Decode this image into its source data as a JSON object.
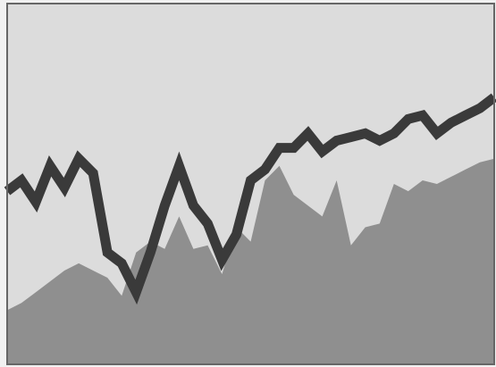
{
  "chart_data": {
    "type": "line",
    "title": "",
    "xlabel": "",
    "ylabel": "",
    "xlim": [
      0,
      34
    ],
    "ylim": [
      0,
      100
    ],
    "grid": false,
    "legend": "none",
    "x": [
      0,
      1,
      2,
      3,
      4,
      5,
      6,
      7,
      8,
      9,
      10,
      11,
      12,
      13,
      14,
      15,
      16,
      17,
      18,
      19,
      20,
      21,
      22,
      23,
      24,
      25,
      26,
      27,
      28,
      29,
      30,
      31,
      32,
      33,
      34
    ],
    "series": [
      {
        "kind": "area",
        "color": "#8f8f8f",
        "values": [
          15,
          17,
          20,
          23,
          26,
          28,
          26,
          24,
          19,
          31,
          34,
          32,
          41,
          32,
          33,
          25,
          38,
          34,
          51,
          55,
          47,
          44,
          41,
          51,
          33,
          38,
          39,
          50,
          48,
          51,
          50,
          52,
          54,
          56,
          57
        ]
      },
      {
        "kind": "line",
        "color": "#3a3a3a",
        "values": [
          48,
          51,
          45,
          55,
          49,
          57,
          53,
          31,
          28,
          20,
          31,
          44,
          55,
          44,
          39,
          29,
          36,
          51,
          54,
          60,
          60,
          64,
          59,
          62,
          63,
          64,
          62,
          64,
          68,
          69,
          64,
          67,
          69,
          71,
          74
        ]
      }
    ],
    "colors": {
      "frame": "#666666",
      "background": "#dcdcdc",
      "page": "#f1f1f1"
    }
  }
}
